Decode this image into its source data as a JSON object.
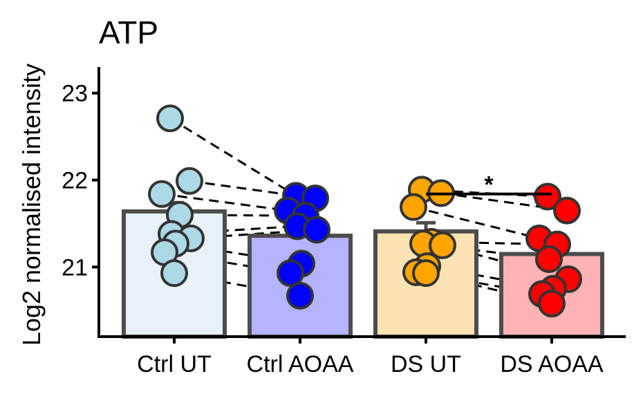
{
  "chart_data": {
    "type": "bar",
    "title": "ATP",
    "xlabel": "",
    "ylabel": "Log2 normalised intensity",
    "ylim": [
      20.2,
      23.3
    ],
    "yticks": [
      21,
      22,
      23
    ],
    "ytick_labels": [
      "21",
      "22",
      "23"
    ],
    "categories": [
      "Ctrl UT",
      "Ctrl AOAA",
      "DS UT",
      "DS AOAA"
    ],
    "values": [
      21.64,
      21.36,
      21.41,
      21.15
    ],
    "errors": [
      0.1,
      0.1,
      0.1,
      0.1
    ],
    "bar_fill": [
      "#e6f2f8",
      "#b3b3ff",
      "#fde3b3",
      "#ffb3b3"
    ],
    "point_fill": [
      "#add8e6",
      "#0000ff",
      "#ffa500",
      "#ff0000"
    ],
    "bar_edge": "#4d4d4d",
    "points": [
      [
        22.71,
        21.99,
        21.84,
        21.6,
        21.38,
        21.33,
        21.27,
        21.17,
        20.93
      ],
      [
        21.82,
        21.79,
        21.65,
        21.59,
        21.47,
        21.43,
        21.04,
        20.93,
        20.67
      ],
      [
        21.89,
        21.85,
        21.69,
        21.29,
        21.27,
        21.25,
        21.01,
        20.94,
        20.93
      ],
      [
        21.81,
        21.65,
        21.33,
        21.26,
        21.09,
        20.86,
        20.75,
        20.69,
        20.58
      ]
    ],
    "pairs": [
      [
        0,
        1
      ],
      [
        2,
        3
      ]
    ],
    "significance": {
      "from": 2,
      "to": 3,
      "label": "*",
      "y": 21.84
    }
  }
}
